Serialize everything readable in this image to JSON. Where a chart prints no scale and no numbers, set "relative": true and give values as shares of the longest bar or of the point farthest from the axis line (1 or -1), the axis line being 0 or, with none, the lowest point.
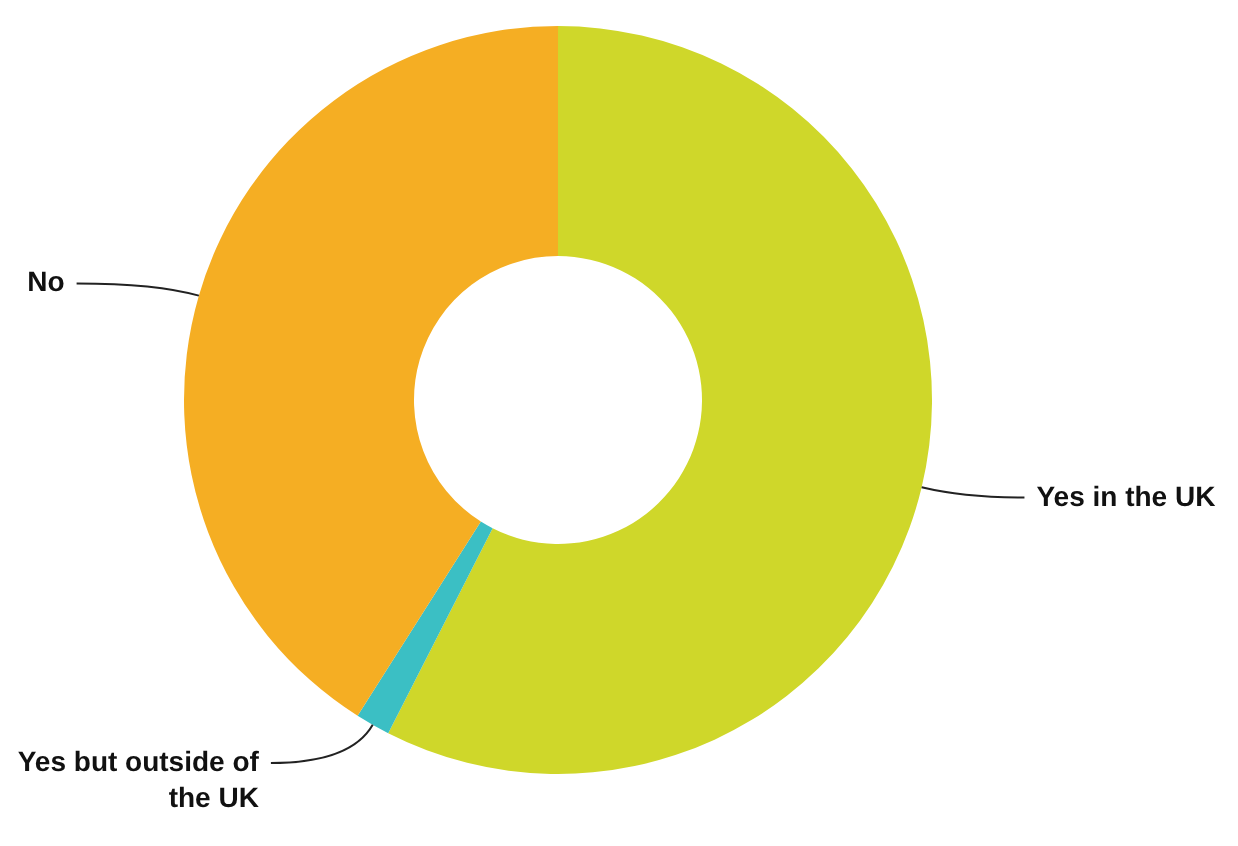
{
  "chart_data": {
    "type": "donut",
    "relative": true,
    "categories": [
      "Yes in the UK",
      "Yes but outside of the UK",
      "No"
    ],
    "values": [
      57.5,
      1.5,
      41
    ],
    "colors": [
      "#cfd72a",
      "#3bbfc4",
      "#f5ae23"
    ]
  }
}
